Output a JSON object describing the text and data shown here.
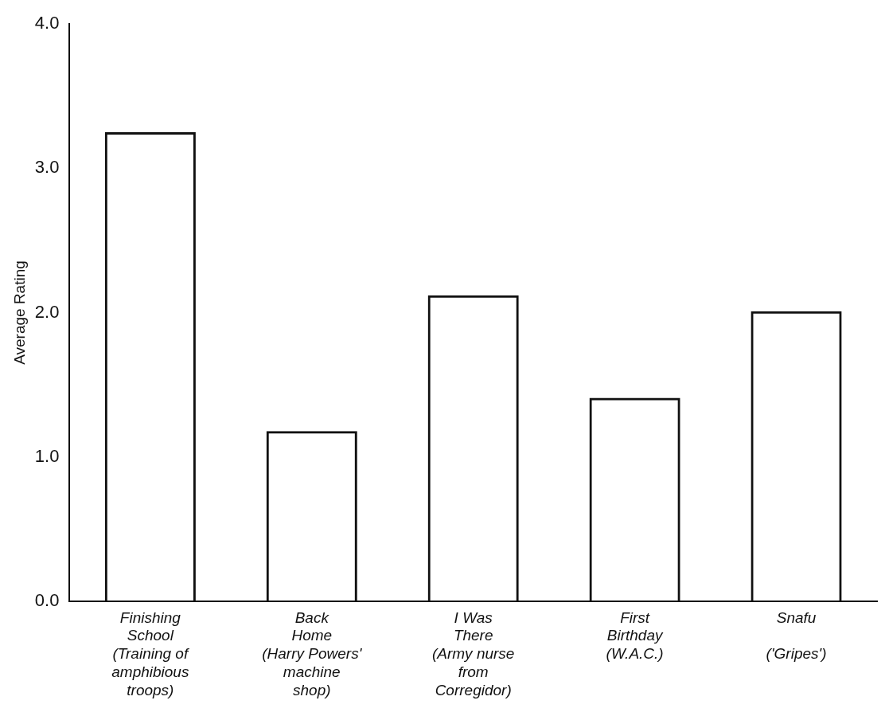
{
  "chart_data": {
    "type": "bar",
    "ylabel": "Average Rating",
    "categories": [
      "Finishing\nSchool\n(Training of\namphibious\ntroops)",
      "Back\nHome\n(Harry Powers'\nmachine\nshop)",
      "I Was\nThere\n(Army nurse\nfrom\nCorregidor)",
      "First\nBirthday\n(W.A.C.)",
      "Snafu\n\n('Gripes')"
    ],
    "values": [
      3.25,
      1.18,
      2.12,
      1.41,
      2.01
    ],
    "color": "#111111",
    "ylim": [
      0,
      4
    ],
    "yticks": [
      {
        "value": 0,
        "label": "0.0"
      },
      {
        "value": 1,
        "label": "1.0"
      },
      {
        "value": 2,
        "label": "2.0"
      },
      {
        "value": 3,
        "label": "3.0"
      },
      {
        "value": 4,
        "label": "4.0"
      }
    ],
    "grid": false,
    "legend": false
  }
}
